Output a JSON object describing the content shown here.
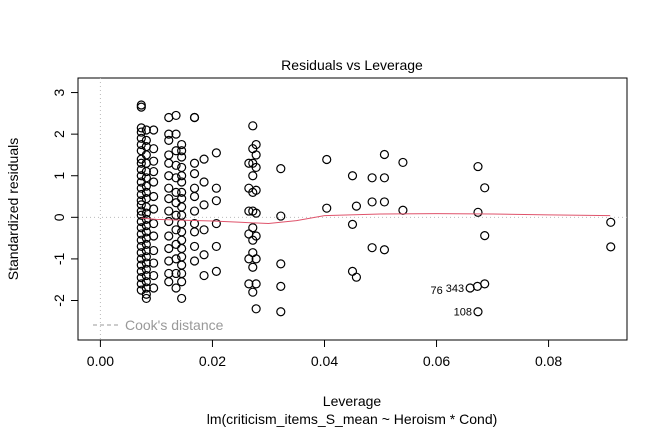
{
  "chart_data": {
    "type": "scatter",
    "title": "Residuals vs Leverage",
    "xlabel": "Leverage",
    "ylabel": "Standardized residuals",
    "subtitle": "lm(criticism_items_S_mean ~ Heroism * Cond)",
    "xlim": [
      -0.004,
      0.094
    ],
    "ylim": [
      -2.95,
      3.35
    ],
    "xticks": [
      "0.00",
      "0.02",
      "0.04",
      "0.06",
      "0.08"
    ],
    "xtick_values": [
      0,
      0.02,
      0.04,
      0.06,
      0.08
    ],
    "yticks": [
      "-2",
      "-1",
      "0",
      "1",
      "2",
      "3"
    ],
    "ytick_values": [
      -2,
      -1,
      0,
      1,
      2,
      3
    ],
    "legend": {
      "label": "Cook's distance",
      "position": "bottom-left"
    },
    "smooth_color": "#DF536B",
    "smooth": [
      [
        0.0073,
        -0.02
      ],
      [
        0.01,
        -0.05
      ],
      [
        0.015,
        -0.07
      ],
      [
        0.02,
        -0.09
      ],
      [
        0.025,
        -0.12
      ],
      [
        0.03,
        -0.15
      ],
      [
        0.035,
        -0.08
      ],
      [
        0.04,
        0.04
      ],
      [
        0.05,
        0.08
      ],
      [
        0.06,
        0.09
      ],
      [
        0.07,
        0.08
      ],
      [
        0.08,
        0.06
      ],
      [
        0.091,
        0.04
      ]
    ],
    "columns": [
      {
        "x": 0.0073,
        "y": [
          2.7,
          2.65,
          2.15,
          2.05,
          1.9,
          1.75,
          1.6,
          1.4,
          1.3,
          1.15,
          1.0,
          0.85,
          0.7,
          0.55,
          0.4,
          0.3,
          0.15,
          0.05,
          -0.1,
          -0.25,
          -0.4,
          -0.55,
          -0.7,
          -0.85,
          -1.0,
          -1.15,
          -1.3,
          -1.45,
          -1.6,
          -1.75
        ]
      },
      {
        "x": 0.0082,
        "y": [
          2.1,
          1.85,
          1.7,
          1.5,
          1.3,
          1.1,
          0.95,
          0.75,
          0.6,
          0.45,
          0.25,
          0.1,
          -0.05,
          -0.2,
          -0.35,
          -0.5,
          -0.65,
          -0.8,
          -0.95,
          -1.1,
          -1.25,
          -1.4,
          -1.55,
          -1.7,
          -1.85,
          -1.95
        ]
      },
      {
        "x": 0.0095,
        "y": [
          2.1,
          1.65,
          1.35,
          1.1,
          0.85,
          0.5,
          0.2,
          -0.15,
          -0.45,
          -0.8,
          -1.1,
          -1.4,
          -1.7
        ]
      },
      {
        "x": 0.0122,
        "y": [
          2.4,
          2.0,
          1.85,
          1.5,
          1.3,
          1.0,
          0.7,
          0.45,
          0.15,
          -0.1,
          -0.45,
          -0.75,
          -1.05,
          -1.35,
          -1.55
        ]
      },
      {
        "x": 0.0135,
        "y": [
          2.45,
          2.0,
          1.6,
          1.25,
          0.95,
          0.6,
          0.35,
          0.05,
          -0.3,
          -0.65,
          -1.0,
          -1.35,
          -1.7
        ]
      },
      {
        "x": 0.0145,
        "y": [
          1.75,
          1.6,
          1.45,
          1.2,
          1.0,
          0.85,
          0.6,
          0.45,
          0.25,
          0.05,
          -0.15,
          -0.35,
          -0.55,
          -0.75,
          -0.95,
          -1.15,
          -1.35,
          -1.55,
          -1.95
        ]
      },
      {
        "x": 0.0168,
        "y": [
          2.4,
          2.4,
          1.3,
          1.05,
          0.7,
          0.5,
          0.15,
          -0.15,
          -0.35,
          -0.7,
          -1.05
        ]
      },
      {
        "x": 0.0185,
        "y": [
          1.4,
          0.85,
          0.3,
          -0.3,
          -0.9,
          -1.4
        ]
      },
      {
        "x": 0.0207,
        "y": [
          1.55,
          0.7,
          0.4,
          -0.15,
          -0.7,
          -1.3
        ]
      },
      {
        "x": 0.0265,
        "y": [
          1.3,
          0.7,
          0.15,
          -0.4,
          -1.0,
          -1.6
        ]
      },
      {
        "x": 0.0272,
        "y": [
          2.2,
          1.65,
          1.3,
          1.0,
          0.6,
          0.15,
          -0.25,
          -0.55,
          -0.85,
          -1.2,
          -1.8
        ]
      },
      {
        "x": 0.0278,
        "y": [
          1.75,
          1.5,
          1.2,
          0.65,
          0.1,
          -0.45,
          -1.0,
          -1.6,
          -2.2
        ]
      },
      {
        "x": 0.0322,
        "y": [
          1.17,
          0.03,
          -1.12,
          -1.66,
          -2.27
        ]
      },
      {
        "x": 0.0404,
        "y": [
          1.39,
          0.22
        ]
      },
      {
        "x": 0.045,
        "y": [
          1.0,
          -0.17,
          -1.3
        ]
      },
      {
        "x": 0.0457,
        "y": [
          0.27,
          -1.44
        ]
      },
      {
        "x": 0.0485,
        "y": [
          0.95,
          0.37,
          -0.73
        ]
      },
      {
        "x": 0.0507,
        "y": [
          1.51,
          0.95,
          0.37,
          -0.78
        ]
      },
      {
        "x": 0.054,
        "y": [
          1.32,
          0.17
        ]
      },
      {
        "x": 0.0674,
        "y": [
          1.22,
          0.12,
          -2.27
        ]
      },
      {
        "x": 0.0686,
        "y": [
          0.71,
          -0.44,
          -1.6
        ]
      },
      {
        "x": 0.0673,
        "y": [
          -1.66
        ]
      },
      {
        "x": 0.066,
        "y": [
          -1.7
        ]
      },
      {
        "x": 0.0911,
        "y": [
          -0.12,
          -0.71
        ]
      }
    ],
    "labels": [
      {
        "text": "343",
        "x": 0.066,
        "y": -1.7
      },
      {
        "text": "76",
        "x": 0.0673,
        "y": -1.75
      },
      {
        "text": "108",
        "x": 0.0674,
        "y": -2.27
      }
    ]
  }
}
